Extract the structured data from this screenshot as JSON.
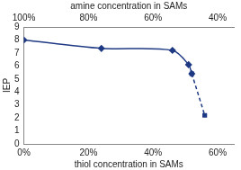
{
  "chart_data": {
    "type": "line",
    "x_label": "thiol concentration in SAMs",
    "x2_label": "amine concentration in SAMs",
    "y_label": "IEP",
    "xlim": [
      0,
      65
    ],
    "xticks": [
      {
        "value": 0,
        "label": "0%"
      },
      {
        "value": 20,
        "label": "20%"
      },
      {
        "value": 40,
        "label": "40%"
      },
      {
        "value": 60,
        "label": "60%"
      }
    ],
    "x2lim": [
      100,
      35
    ],
    "x2ticks": [
      {
        "value": 100,
        "label": "100%"
      },
      {
        "value": 80,
        "label": "80%"
      },
      {
        "value": 60,
        "label": "60%"
      },
      {
        "value": 40,
        "label": "40%"
      }
    ],
    "ylim": [
      0,
      9
    ],
    "yticks": [
      0,
      1,
      2,
      3,
      4,
      5,
      6,
      7,
      8,
      9
    ],
    "grid": false,
    "series": [
      {
        "color": "#1f3a84",
        "marker": "diamond",
        "line_style": "solid",
        "x": [
          0,
          24,
          46,
          51,
          52
        ],
        "values": [
          8.0,
          7.35,
          7.2,
          6.1,
          5.4
        ]
      },
      {
        "color": "#1f3a84",
        "marker": "square",
        "line_style": "dashed",
        "x": [
          52,
          56
        ],
        "values": [
          5.4,
          2.2
        ]
      }
    ]
  }
}
